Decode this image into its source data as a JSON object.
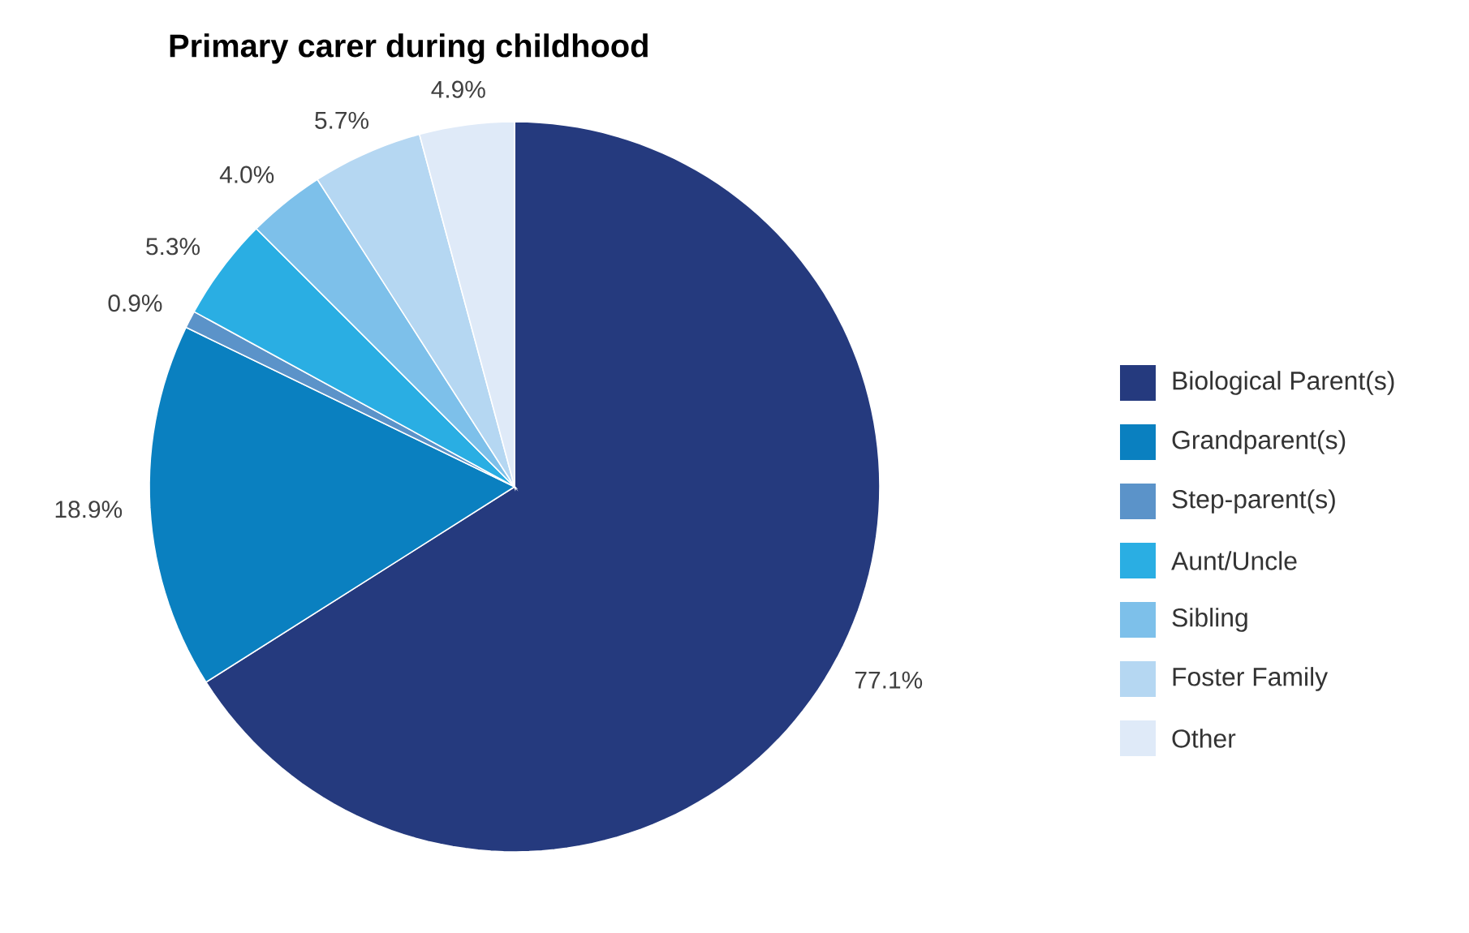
{
  "chart_data": {
    "type": "pie",
    "title": "Primary carer during childhood",
    "categories": [
      "Biological Parent(s)",
      "Grandparent(s)",
      "Step-parent(s)",
      "Aunt/Uncle",
      "Sibling",
      "Foster Family",
      "Other"
    ],
    "values": [
      77.1,
      18.9,
      0.9,
      5.3,
      4.0,
      5.7,
      4.9
    ],
    "value_labels": [
      "77.1%",
      "18.9%",
      "0.9%",
      "5.3%",
      "4.0%",
      "5.7%",
      "4.9%"
    ],
    "colors": [
      "#253a7e",
      "#0a80c0",
      "#5b93c9",
      "#2aaee3",
      "#7dc0ea",
      "#b5d7f2",
      "#dfeaf8"
    ],
    "legend": "right"
  }
}
